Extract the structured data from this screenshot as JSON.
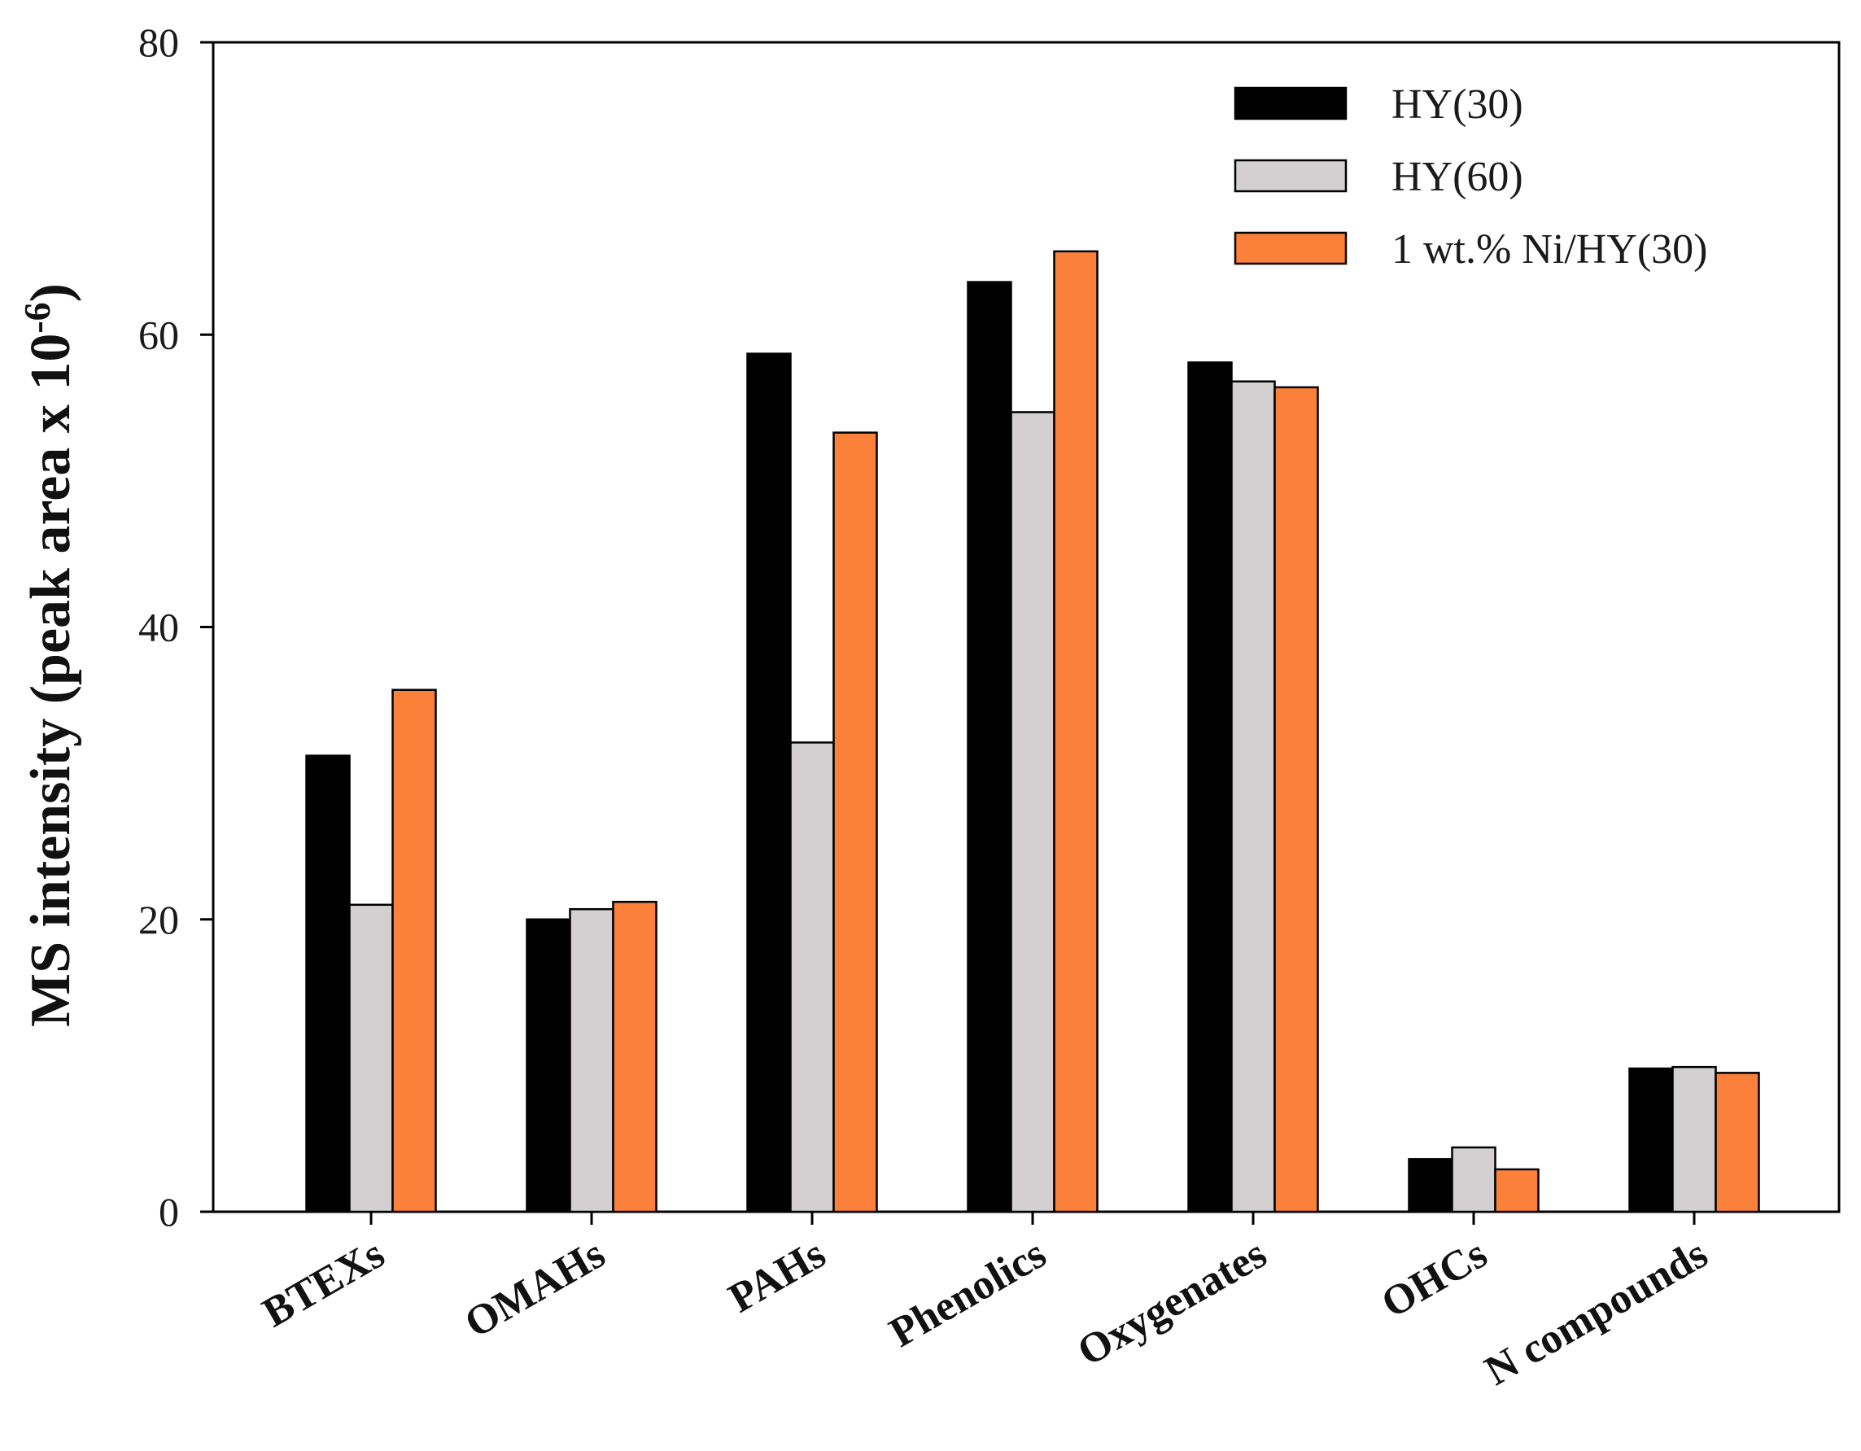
{
  "chart_data": {
    "type": "bar",
    "title": "",
    "xlabel": "",
    "ylabel": "MS intensity (peak area x 10",
    "ylabel_superscript": "-6",
    "ylabel_suffix": ")",
    "ylim": [
      0,
      80
    ],
    "yticks": [
      0,
      20,
      40,
      60,
      80
    ],
    "legend_position": "top-right",
    "categories": [
      "BTEXs",
      "OMAHs",
      "PAHs",
      "Phenolics",
      "Oxygenates",
      "OHCs",
      "N compounds"
    ],
    "series": [
      {
        "name": "HY(30)",
        "color": "#000000",
        "values": [
          31.2,
          20.0,
          58.7,
          63.6,
          58.1,
          3.6,
          9.8
        ]
      },
      {
        "name": "HY(60)",
        "color": "#d4d0d1",
        "values": [
          21.0,
          20.7,
          32.1,
          54.7,
          56.8,
          4.4,
          9.9
        ]
      },
      {
        "name": "1 wt.% Ni/HY(30)",
        "color": "#fb8039",
        "values": [
          35.7,
          21.2,
          53.3,
          65.7,
          56.4,
          2.9,
          9.5
        ]
      }
    ]
  }
}
